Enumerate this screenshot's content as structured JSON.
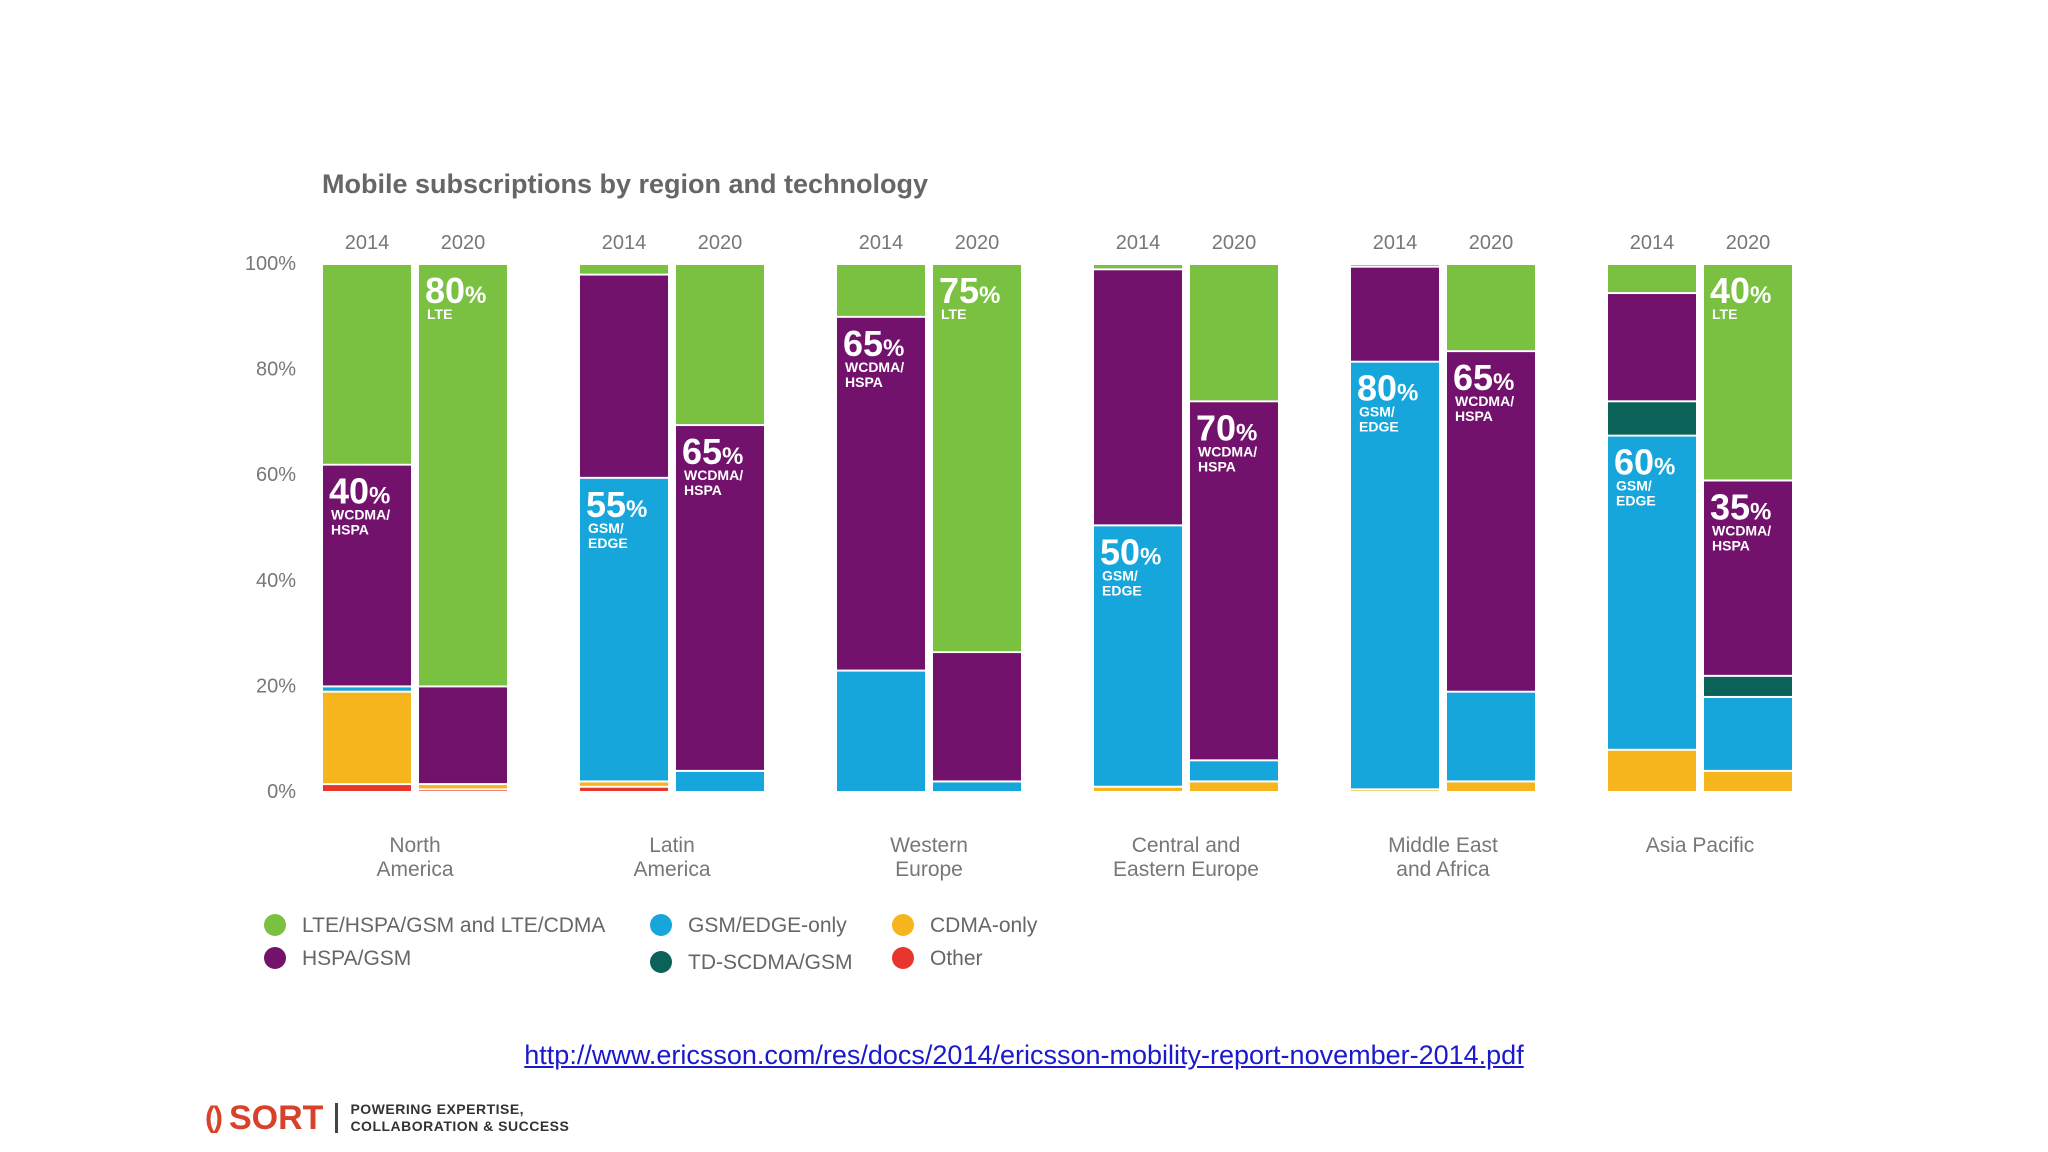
{
  "colors": {
    "lte": "#7ac142",
    "hspa": "#73126d",
    "gsm": "#16a6db",
    "td": "#0b6258",
    "cdma": "#f6b51d",
    "other": "#e8362d",
    "title": "#666666",
    "axis": "#777777",
    "link": "#1a1acc",
    "brand": "#d8422b"
  },
  "chart_data": {
    "type": "bar",
    "stacked": true,
    "normalized": true,
    "title": "Mobile subscriptions by region and technology",
    "y_ticks": [
      "100%",
      "80%",
      "60%",
      "40%",
      "20%",
      "0%"
    ],
    "ylim": [
      0,
      100
    ],
    "legend_position": "bottom-left",
    "series_order": [
      "other",
      "cdma",
      "gsm",
      "td",
      "hspa",
      "lte"
    ],
    "legend": [
      {
        "key": "lte",
        "label": "LTE/HSPA/GSM and LTE/CDMA"
      },
      {
        "key": "hspa",
        "label": "HSPA/GSM"
      },
      {
        "key": "gsm",
        "label": "GSM/EDGE-only"
      },
      {
        "key": "td",
        "label": "TD-SCDMA/GSM"
      },
      {
        "key": "cdma",
        "label": "CDMA-only"
      },
      {
        "key": "other",
        "label": "Other"
      }
    ],
    "regions": [
      {
        "name": [
          "North",
          "America"
        ],
        "bars": [
          {
            "year": "2014",
            "values": {
              "other": 1.5,
              "cdma": 17.5,
              "gsm": 1,
              "td": 0,
              "hspa": 42,
              "lte": 38
            },
            "annotation": {
              "pct": "40",
              "unit": "%",
              "lines": [
                "WCDMA/",
                "HSPA"
              ],
              "series": "hspa"
            }
          },
          {
            "year": "2020",
            "values": {
              "other": 0.5,
              "cdma": 1,
              "gsm": 0,
              "td": 0,
              "hspa": 18.5,
              "lte": 80
            },
            "annotation": {
              "pct": "80",
              "unit": "%",
              "lines": [
                "LTE"
              ],
              "series": "lte"
            }
          }
        ]
      },
      {
        "name": [
          "Latin",
          "America"
        ],
        "bars": [
          {
            "year": "2014",
            "values": {
              "other": 1,
              "cdma": 1,
              "gsm": 57.5,
              "td": 0,
              "hspa": 38.5,
              "lte": 2
            },
            "annotation": {
              "pct": "55",
              "unit": "%",
              "lines": [
                "GSM/",
                "EDGE"
              ],
              "series": "gsm"
            }
          },
          {
            "year": "2020",
            "values": {
              "other": 0,
              "cdma": 0,
              "gsm": 4,
              "td": 0,
              "hspa": 65.5,
              "lte": 30.5
            },
            "annotation": {
              "pct": "65",
              "unit": "%",
              "lines": [
                "WCDMA/",
                "HSPA"
              ],
              "series": "hspa"
            }
          }
        ]
      },
      {
        "name": [
          "Western",
          "Europe"
        ],
        "bars": [
          {
            "year": "2014",
            "values": {
              "other": 0,
              "cdma": 0,
              "gsm": 23,
              "td": 0,
              "hspa": 67,
              "lte": 10
            },
            "annotation": {
              "pct": "65",
              "unit": "%",
              "lines": [
                "WCDMA/",
                "HSPA"
              ],
              "series": "hspa"
            }
          },
          {
            "year": "2020",
            "values": {
              "other": 0,
              "cdma": 0,
              "gsm": 2,
              "td": 0,
              "hspa": 24.5,
              "lte": 73.5
            },
            "annotation": {
              "pct": "75",
              "unit": "%",
              "lines": [
                "LTE"
              ],
              "series": "lte"
            }
          }
        ]
      },
      {
        "name": [
          "Central and",
          "Eastern Europe"
        ],
        "bars": [
          {
            "year": "2014",
            "values": {
              "other": 0,
              "cdma": 1,
              "gsm": 49.5,
              "td": 0,
              "hspa": 48.5,
              "lte": 1
            },
            "annotation": {
              "pct": "50",
              "unit": "%",
              "lines": [
                "GSM/",
                "EDGE"
              ],
              "series": "gsm"
            }
          },
          {
            "year": "2020",
            "values": {
              "other": 0,
              "cdma": 2,
              "gsm": 4,
              "td": 0,
              "hspa": 68,
              "lte": 26
            },
            "annotation": {
              "pct": "70",
              "unit": "%",
              "lines": [
                "WCDMA/",
                "HSPA"
              ],
              "series": "hspa"
            }
          }
        ]
      },
      {
        "name": [
          "Middle East",
          "and Africa"
        ],
        "bars": [
          {
            "year": "2014",
            "values": {
              "other": 0,
              "cdma": 0.5,
              "gsm": 81,
              "td": 0,
              "hspa": 18,
              "lte": 0.5
            },
            "annotation": {
              "pct": "80",
              "unit": "%",
              "lines": [
                "GSM/",
                "EDGE"
              ],
              "series": "gsm"
            }
          },
          {
            "year": "2020",
            "values": {
              "other": 0,
              "cdma": 2,
              "gsm": 17,
              "td": 0,
              "hspa": 64.5,
              "lte": 16.5
            },
            "annotation": {
              "pct": "65",
              "unit": "%",
              "lines": [
                "WCDMA/",
                "HSPA"
              ],
              "series": "hspa"
            }
          }
        ]
      },
      {
        "name": [
          "Asia Pacific"
        ],
        "bars": [
          {
            "year": "2014",
            "values": {
              "other": 0,
              "cdma": 8,
              "gsm": 59.5,
              "td": 6.5,
              "hspa": 20.5,
              "lte": 5.5
            },
            "annotation": {
              "pct": "60",
              "unit": "%",
              "lines": [
                "GSM/",
                "EDGE"
              ],
              "series": "gsm"
            }
          },
          {
            "year": "2020",
            "values": {
              "other": 0,
              "cdma": 4,
              "gsm": 14,
              "td": 4,
              "hspa": 37,
              "lte": 41
            },
            "annotation": {
              "pct": "40",
              "unit": "%",
              "lines": [
                "LTE"
              ],
              "series": "lte",
              "second": {
                "pct": "35",
                "unit": "%",
                "lines": [
                  "WCDMA/",
                  "HSPA"
                ],
                "series": "hspa"
              }
            }
          }
        ]
      }
    ]
  },
  "source": {
    "url_text": "http://www.ericsson.com/res/docs/2014/ericsson-mobility-report-november-2014.pdf"
  },
  "logo": {
    "brace": "()",
    "word": "SORT",
    "tagline": [
      "POWERING EXPERTISE,",
      "COLLABORATION & SUCCESS"
    ]
  }
}
